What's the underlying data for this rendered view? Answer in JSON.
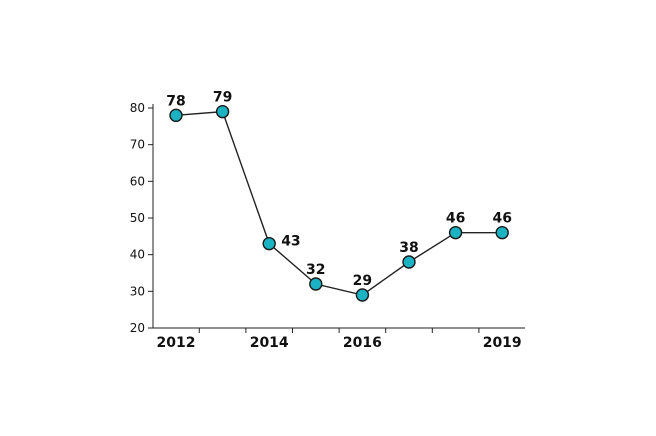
{
  "chart_data": {
    "type": "line",
    "title": "",
    "xlabel": "",
    "ylabel": "",
    "x": [
      2012,
      2013,
      2014,
      2015,
      2016,
      2017,
      2018,
      2019
    ],
    "values": [
      78,
      79,
      43,
      32,
      29,
      38,
      46,
      46
    ],
    "data_labels": [
      "78",
      "79",
      "43",
      "32",
      "29",
      "38",
      "46",
      "46"
    ],
    "x_tick_labels": [
      "2012",
      "2014",
      "2016",
      "2019"
    ],
    "x_tick_label_years": [
      2012,
      2014,
      2016,
      2019
    ],
    "y_ticks": [
      20,
      30,
      40,
      50,
      60,
      70,
      80
    ],
    "ylim": [
      20,
      80
    ],
    "grid": false,
    "legend": "none",
    "line_color": "#222222",
    "marker_fill": "#1bb3c4",
    "marker_stroke": "#1a1a1a"
  }
}
